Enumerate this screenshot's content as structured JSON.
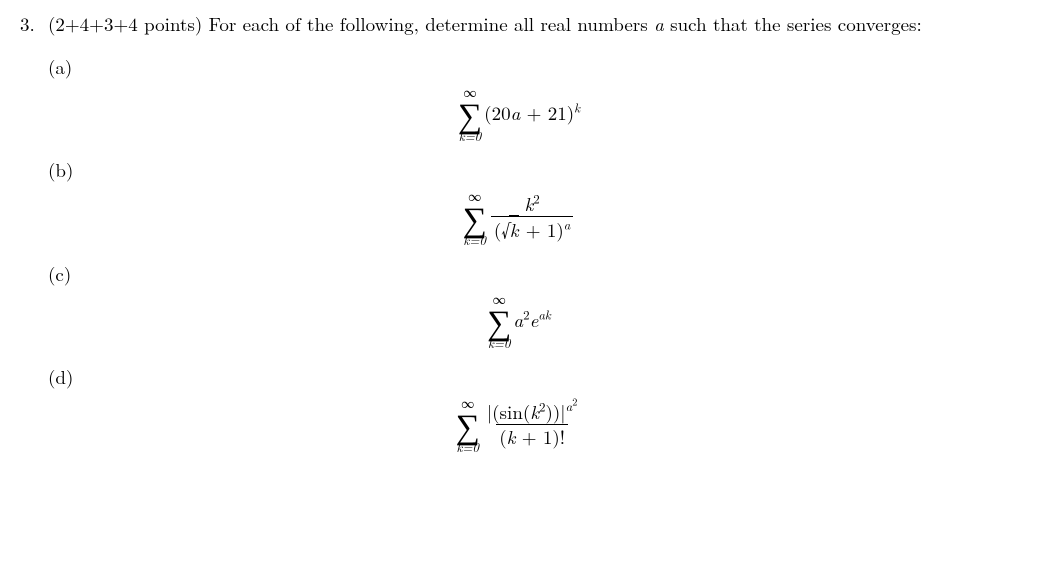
{
  "background_color": "#ffffff",
  "text_color": "#000000",
  "font_family_serif": "Computer Modern / Latin Modern",
  "base_fontsize_pt": 14,
  "problem": {
    "number": "3.",
    "points": "(2+4+3+4 points)",
    "prompt_part1": "For each of the following, determine all real numbers ",
    "variable": "a",
    "prompt_part2": " such that the series converges:"
  },
  "parts": {
    "a": {
      "label": "(a)",
      "formula": {
        "type": "series",
        "sigma_top": "∞",
        "sigma_bottom": "k=0",
        "body_plain": "(20a + 21)^k",
        "open": "(20",
        "var1": "a",
        "mid": " + 21)",
        "exp": "k"
      }
    },
    "b": {
      "label": "(b)",
      "formula": {
        "type": "series_fraction",
        "sigma_top": "∞",
        "sigma_bottom": "k=0",
        "numerator": "k",
        "numerator_exp": "2",
        "den_open": "(",
        "den_sqrt_arg": "k",
        "den_after_sqrt": " + 1)",
        "den_exp": "a"
      }
    },
    "c": {
      "label": "(c)",
      "formula": {
        "type": "series",
        "sigma_top": "∞",
        "sigma_bottom": "k=0",
        "coef_var": "a",
        "coef_exp": "2",
        "e": "e",
        "e_exp": "ak"
      }
    },
    "d": {
      "label": "(d)",
      "formula": {
        "type": "series_fraction",
        "sigma_top": "∞",
        "sigma_bottom": "k=0",
        "num_open": "|(sin(",
        "num_arg": "k",
        "num_arg_exp": "2",
        "num_close": "))|",
        "num_outer_exp_base": "a",
        "num_outer_exp_exp": "2",
        "den_open": "(",
        "den_var": "k",
        "den_plus": " + 1)!"
      }
    }
  }
}
